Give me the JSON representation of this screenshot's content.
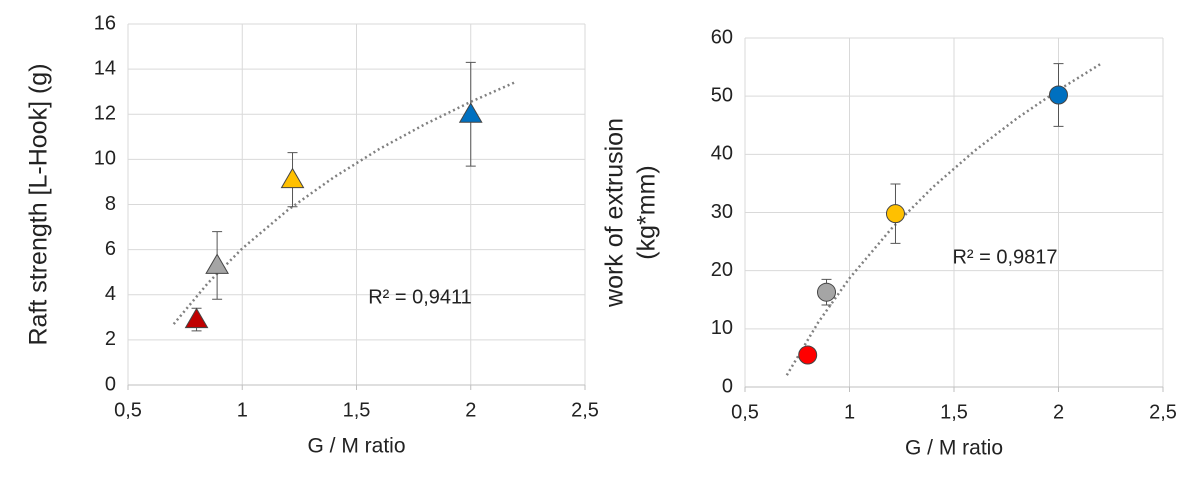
{
  "chart_data": [
    {
      "type": "scatter",
      "xlabel": "G / M ratio",
      "ylabel": [
        "Raft strength [L-Hook] (g)"
      ],
      "xlim": [
        0.5,
        2.5
      ],
      "ylim": [
        0,
        16
      ],
      "xticks": [
        {
          "value": 0.5,
          "label": "0,5"
        },
        1,
        {
          "value": 1.5,
          "label": "1,5"
        },
        2,
        {
          "value": 2.5,
          "label": "2,5"
        }
      ],
      "yticks": [
        0,
        2,
        4,
        6,
        8,
        10,
        12,
        14,
        16
      ],
      "grid": true,
      "marker": "triangle",
      "x": [
        0.8,
        0.89,
        1.22,
        2.0
      ],
      "values": [
        2.9,
        5.3,
        9.1,
        12.0
      ],
      "errors": [
        0.5,
        1.5,
        1.2,
        2.3
      ],
      "colors": [
        "#c00000",
        "#a5a5a5",
        "#ffc000",
        "#0070c0"
      ],
      "trendline": {
        "color": "#808080",
        "x": [
          0.7,
          0.85,
          1,
          1.2,
          1.4,
          1.6,
          1.8,
          2,
          2.19
        ],
        "values": [
          2.7,
          4.52,
          6.05,
          7.76,
          9.2,
          10.46,
          11.56,
          12.55,
          13.4
        ]
      },
      "annotation": "R² = 0,9411"
    },
    {
      "type": "scatter",
      "xlabel": "G / M ratio",
      "ylabel": [
        "work of extrusion",
        "(kg*mm)"
      ],
      "xlim": [
        0.5,
        2.5
      ],
      "ylim": [
        0,
        60
      ],
      "xticks": [
        {
          "value": 0.5,
          "label": "0,5"
        },
        1,
        {
          "value": 1.5,
          "label": "1,5"
        },
        2,
        {
          "value": 2.5,
          "label": "2,5"
        }
      ],
      "yticks": [
        0,
        10,
        20,
        30,
        40,
        50,
        60
      ],
      "grid": true,
      "marker": "circle",
      "x": [
        0.8,
        0.89,
        1.22,
        2.0
      ],
      "values": [
        5.5,
        16.3,
        29.8,
        50.2
      ],
      "errors": [
        0.3,
        2.2,
        5.1,
        5.4
      ],
      "colors": [
        "#ff0000",
        "#a5a5a5",
        "#ffc000",
        "#0070c0"
      ],
      "trendline": {
        "color": "#808080",
        "x": [
          0.7,
          0.85,
          1,
          1.2,
          1.4,
          1.6,
          1.8,
          2,
          2.2
        ],
        "values": [
          2.03,
          11.09,
          18.7,
          27.2,
          34.39,
          40.65,
          46.15,
          51.06,
          55.5
        ]
      },
      "annotation": "R² = 0,9817"
    }
  ]
}
